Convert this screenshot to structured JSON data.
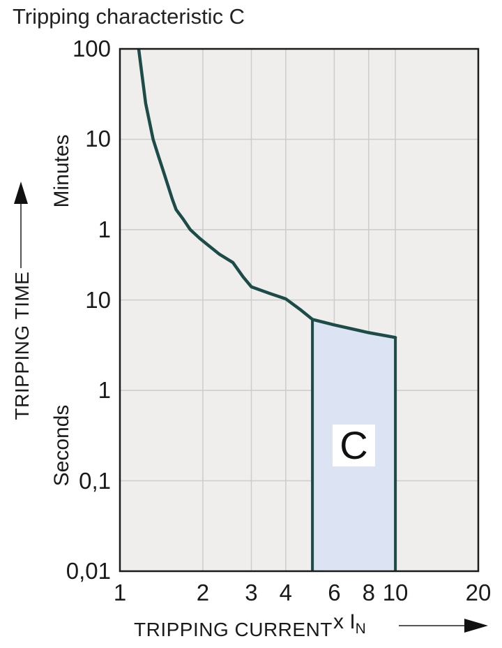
{
  "title": "Tripping characteristic C",
  "y_axis_label": "TRIPPING TIME",
  "y_unit_minutes": "Minutes",
  "y_unit_seconds": "Seconds",
  "x_axis_label": "TRIPPING CURRENT",
  "x_unit_prefix": "x I",
  "x_unit_sub": "N",
  "region_label": "C",
  "colors": {
    "curve": "#1c4b48",
    "region_fill": "#dce4f4",
    "region_border": "#1c4b48",
    "plot_bg": "#efeeec",
    "grid": "#cccccc",
    "frame": "#1a1a1a",
    "text": "#1a1a1a",
    "arrow": "#555555"
  },
  "chart_data": {
    "type": "line",
    "title": "Tripping characteristic C",
    "x_scale": "log",
    "y_scale": "log",
    "x_range": [
      1,
      20
    ],
    "y_range_seconds": [
      0.01,
      6000
    ],
    "grid": true,
    "xlabel": "TRIPPING CURRENT x IN",
    "ylabel": "TRIPPING TIME (Minutes / Seconds)",
    "x_ticks": [
      {
        "label": "1",
        "value": 1
      },
      {
        "label": "2",
        "value": 2
      },
      {
        "label": "3",
        "value": 3
      },
      {
        "label": "4",
        "value": 4
      },
      {
        "label": "6",
        "value": 6
      },
      {
        "label": "8",
        "value": 8
      },
      {
        "label": "10",
        "value": 10
      },
      {
        "label": "20",
        "value": 20
      }
    ],
    "y_ticks": [
      {
        "label": "100",
        "seconds": 6000,
        "unit": "Minutes"
      },
      {
        "label": "10",
        "seconds": 600,
        "unit": "Minutes"
      },
      {
        "label": "1",
        "seconds": 60,
        "unit": "Minutes"
      },
      {
        "label": "10",
        "seconds": 10,
        "unit": "Seconds"
      },
      {
        "label": "1",
        "seconds": 1,
        "unit": "Seconds"
      },
      {
        "label": "0,1",
        "seconds": 0.1,
        "unit": "Seconds"
      },
      {
        "label": "0,01",
        "seconds": 0.01,
        "unit": "Seconds"
      }
    ],
    "series": [
      {
        "name": "C tripping curve",
        "points_x_multiple_y_seconds": [
          [
            1.17,
            6000
          ],
          [
            1.24,
            1500
          ],
          [
            1.32,
            600
          ],
          [
            1.38,
            390
          ],
          [
            1.45,
            245
          ],
          [
            1.55,
            130
          ],
          [
            1.6,
            100
          ],
          [
            1.7,
            78
          ],
          [
            1.8,
            60
          ],
          [
            1.95,
            48
          ],
          [
            2.1,
            40
          ],
          [
            2.3,
            32
          ],
          [
            2.57,
            26
          ],
          [
            2.8,
            18
          ],
          [
            3,
            14
          ],
          [
            3.5,
            11.8
          ],
          [
            4,
            10.3
          ],
          [
            4.5,
            7.9
          ],
          [
            5,
            6.1
          ],
          [
            6,
            5.3
          ],
          [
            8,
            4.35
          ],
          [
            10,
            3.85
          ]
        ]
      }
    ],
    "region": {
      "label": "C",
      "x_from": 5,
      "x_to": 10,
      "bottom_seconds": 0.01,
      "top_left_seconds": 6.1,
      "top_right_seconds": 3.85,
      "top_follows_curve": true
    }
  }
}
